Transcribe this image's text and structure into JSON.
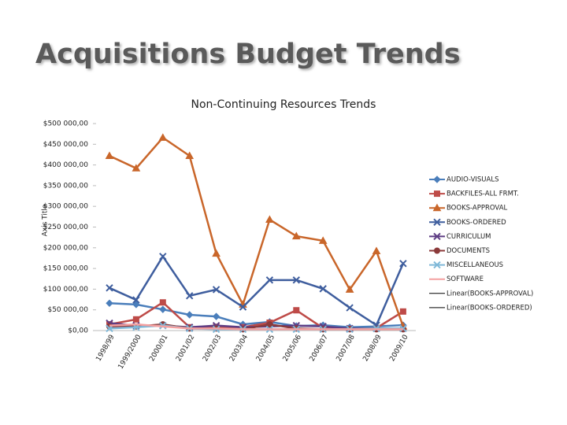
{
  "slide_title": "Acquisitions Budget Trends",
  "chart_data": {
    "type": "line",
    "title": "Non-Continuing Resources Trends",
    "y_label": "Axis Title",
    "categories": [
      "1998/99",
      "1999/2000",
      "2000/01",
      "2001/02",
      "2002/03",
      "2003/04",
      "2004/05",
      "2005/06",
      "2006/07",
      "2007/08",
      "2008/09",
      "2009/10"
    ],
    "ylim": [
      0,
      500000
    ],
    "yticks": [
      {
        "value": 0,
        "label": "$0,00"
      },
      {
        "value": 50000,
        "label": "$50 000,00"
      },
      {
        "value": 100000,
        "label": "$100 000,00"
      },
      {
        "value": 150000,
        "label": "$150 000,00"
      },
      {
        "value": 200000,
        "label": "$200 000,00"
      },
      {
        "value": 250000,
        "label": "$250 000,00"
      },
      {
        "value": 300000,
        "label": "$300 000,00"
      },
      {
        "value": 350000,
        "label": "$350 000,00"
      },
      {
        "value": 400000,
        "label": "$400 000,00"
      },
      {
        "value": 450000,
        "label": "$450 000,00"
      },
      {
        "value": 500000,
        "label": "$500 000,00"
      }
    ],
    "legend": "right",
    "series": [
      {
        "name": "AUDIO-VISUALS",
        "color": "#4a7ebb",
        "marker": "diamond",
        "values": [
          66000,
          63000,
          51000,
          38000,
          34000,
          15000,
          21000,
          11000,
          13000,
          8000,
          10000,
          13000
        ]
      },
      {
        "name": "BACKFILES-ALL FRMT.",
        "color": "#be4b48",
        "marker": "square",
        "values": [
          15000,
          27000,
          68000,
          8000,
          9000,
          8000,
          19000,
          49000,
          6000,
          4000,
          6000,
          46000
        ]
      },
      {
        "name": "BOOKS-APPROVAL",
        "color": "#c9662a",
        "marker": "triangle",
        "values": [
          422000,
          392000,
          466000,
          422000,
          186000,
          63000,
          268000,
          228000,
          217000,
          99000,
          192000,
          10000
        ]
      },
      {
        "name": "BOOKS-ORDERED",
        "color": "#3f5e9e",
        "marker": "x",
        "values": [
          103000,
          74000,
          179000,
          84000,
          99000,
          57000,
          122000,
          122000,
          101000,
          55000,
          13000,
          162000
        ]
      },
      {
        "name": "CURRICULUM",
        "color": "#5e3d84",
        "marker": "x",
        "values": [
          18000,
          12000,
          12000,
          8000,
          12000,
          8000,
          10000,
          12000,
          10000,
          5000,
          5000,
          5000
        ]
      },
      {
        "name": "DOCUMENTS",
        "color": "#8b3a3a",
        "marker": "circle",
        "values": [
          10000,
          10000,
          15000,
          5000,
          5000,
          3000,
          15000,
          5000,
          3000,
          3000,
          3000,
          3000
        ]
      },
      {
        "name": "MISCELLANEOUS",
        "color": "#7fb8d8",
        "marker": "x",
        "values": [
          5000,
          8000,
          12000,
          5000,
          3000,
          3000,
          3000,
          3000,
          3000,
          3000,
          5000,
          5000
        ]
      },
      {
        "name": "SOFTWARE",
        "color": "#f4a0a0",
        "marker": "none",
        "values": [
          12000,
          15000,
          10000,
          5000,
          5000,
          3000,
          3000,
          3000,
          3000,
          3000,
          3000,
          3000
        ]
      }
    ],
    "trendlines": [
      {
        "name": "Linear(BOOKS-APPROVAL)",
        "color": "#000000"
      },
      {
        "name": "Linear(BOOKS-ORDERED)",
        "color": "#000000"
      }
    ]
  }
}
